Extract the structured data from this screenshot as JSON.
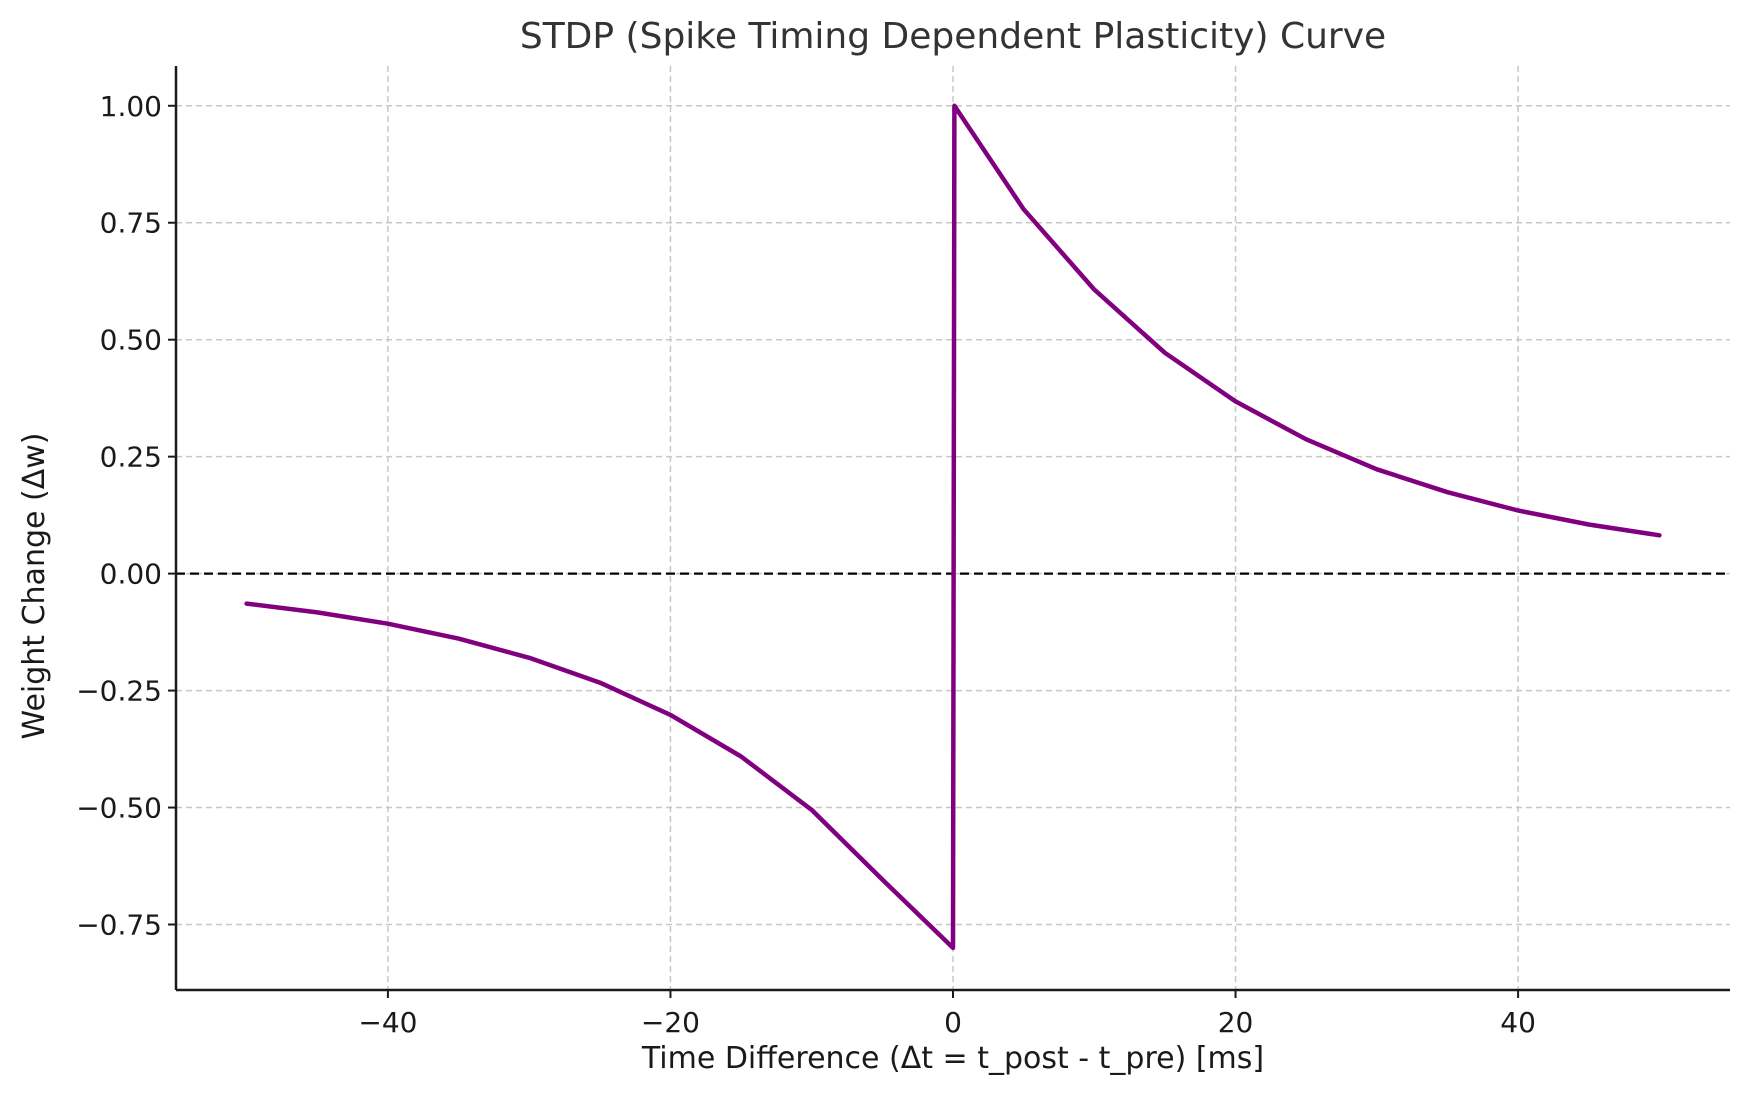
{
  "chart_data": {
    "type": "line",
    "title": "STDP (Spike Timing Dependent Plasticity) Curve",
    "xlabel": "Time Difference (Δt = t_post - t_pre) [ms]",
    "ylabel": "Weight Change (Δw)",
    "xlim": [
      -55,
      55
    ],
    "ylim": [
      -0.89,
      1.085
    ],
    "xticks": [
      -40,
      -20,
      0,
      20,
      40
    ],
    "xtick_labels": [
      "−40",
      "−20",
      "0",
      "20",
      "40"
    ],
    "yticks": [
      1.0,
      0.75,
      0.5,
      0.25,
      0.0,
      -0.25,
      -0.5,
      -0.75
    ],
    "ytick_labels": [
      "1.00",
      "0.75",
      "0.50",
      "0.25",
      "0.00",
      "−0.25",
      "−0.50",
      "−0.75"
    ],
    "grid": true,
    "reference_line": {
      "y": 0,
      "style": "dashed",
      "color": "#000000"
    },
    "series": [
      {
        "color": "#800080",
        "x": [
          -50,
          -45,
          -40,
          -35,
          -30,
          -25,
          -20,
          -15,
          -10,
          -5,
          0,
          0.1,
          5,
          10,
          15,
          20,
          25,
          30,
          35,
          40,
          45,
          50
        ],
        "values": [
          -0.064,
          -0.083,
          -0.107,
          -0.139,
          -0.18,
          -0.233,
          -0.302,
          -0.391,
          -0.505,
          -0.654,
          -0.8,
          1.0,
          0.779,
          0.607,
          0.472,
          0.368,
          0.287,
          0.223,
          0.174,
          0.135,
          0.105,
          0.082
        ]
      }
    ]
  }
}
